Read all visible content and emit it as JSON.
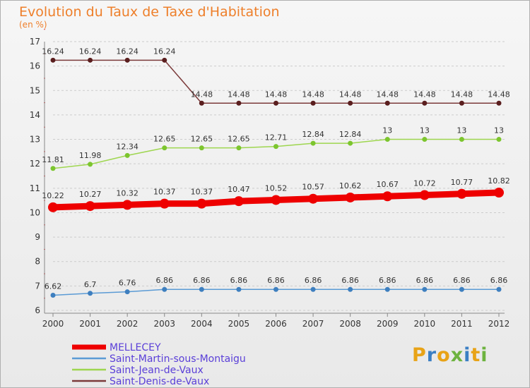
{
  "title": "Evolution du Taux de Taxe d'Habitation",
  "unit_label": "(en %)",
  "logo": "Proxiti",
  "logo_colors": [
    "#e8a317",
    "#3b7fc4",
    "#e8a317",
    "#6db33f",
    "#3b7fc4",
    "#e8a317",
    "#6db33f"
  ],
  "colors": {
    "title": "#ee7f2a",
    "axis": "#888888",
    "grid": "#cccccc",
    "tick": "#333333"
  },
  "chart_data": {
    "type": "line",
    "title": "Evolution du Taux de Taxe d'Habitation",
    "ylabel": "(en %)",
    "xlabel": "",
    "x": [
      "2000",
      "2001",
      "2002",
      "2003",
      "2004",
      "2005",
      "2006",
      "2007",
      "2008",
      "2009",
      "2010",
      "2011",
      "2012"
    ],
    "ylim": [
      6,
      17
    ],
    "yticks": [
      6,
      7,
      8,
      9,
      10,
      11,
      12,
      13,
      14,
      15,
      16,
      17
    ],
    "grid": "horizontal-dashed",
    "legend_position": "bottom-left",
    "series": [
      {
        "name": "MELLECEY",
        "color": "#ee0000",
        "width": 9,
        "marker": 7,
        "labels": [
          "10.22",
          "10.27",
          "10.32",
          "10.37",
          "10.37",
          "10.47",
          "10.52",
          "10.57",
          "10.62",
          "10.67",
          "10.72",
          "10.77",
          "10.82"
        ],
        "values": [
          10.22,
          10.27,
          10.32,
          10.37,
          10.37,
          10.47,
          10.52,
          10.57,
          10.62,
          10.67,
          10.72,
          10.77,
          10.82
        ]
      },
      {
        "name": "Saint-Martin-sous-Montaigu",
        "color": "#5b9bd5",
        "marker_color": "#3e7fbf",
        "width": 1.5,
        "marker": 3.5,
        "labels": [
          "6.62",
          "6.7",
          "6.76",
          "6.86",
          "6.86",
          "6.86",
          "6.86",
          "6.86",
          "6.86",
          "6.86",
          "6.86",
          "6.86",
          "6.86"
        ],
        "values": [
          6.62,
          6.7,
          6.76,
          6.86,
          6.86,
          6.86,
          6.86,
          6.86,
          6.86,
          6.86,
          6.86,
          6.86,
          6.86
        ]
      },
      {
        "name": "Saint-Jean-de-Vaux",
        "color": "#9ed64f",
        "marker_color": "#7cc52e",
        "width": 1.5,
        "marker": 3.5,
        "labels": [
          "11.81",
          "11.98",
          "12.34",
          "12.65",
          "12.65",
          "12.65",
          "12.71",
          "12.84",
          "12.84",
          "13",
          "13",
          "13",
          "13"
        ],
        "values": [
          11.81,
          11.98,
          12.34,
          12.65,
          12.65,
          12.65,
          12.71,
          12.84,
          12.84,
          13,
          13,
          13,
          13
        ]
      },
      {
        "name": "Saint-Denis-de-Vaux",
        "color": "#7b3a3a",
        "marker_color": "#5a1e1e",
        "width": 1.5,
        "marker": 3.5,
        "labels": [
          "16.24",
          "16.24",
          "16.24",
          "16.24",
          "14.48",
          "14.48",
          "14.48",
          "14.48",
          "14.48",
          "14.48",
          "14.48",
          "14.48",
          "14.48"
        ],
        "values": [
          16.24,
          16.24,
          16.24,
          16.24,
          14.48,
          14.48,
          14.48,
          14.48,
          14.48,
          14.48,
          14.48,
          14.48,
          14.48
        ]
      }
    ]
  }
}
